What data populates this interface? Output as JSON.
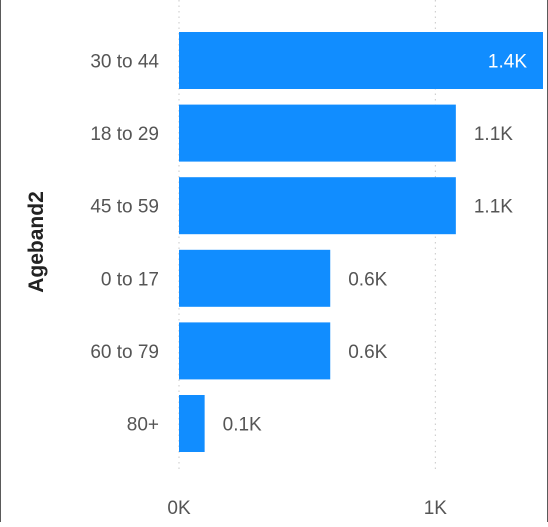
{
  "chart_data": {
    "type": "bar",
    "orientation": "horizontal",
    "title": "",
    "xlabel": "",
    "ylabel": "Ageband2",
    "categories": [
      "30 to 44",
      "18 to 29",
      "45 to 59",
      "0 to 17",
      "60 to 79",
      "80+"
    ],
    "values": [
      1420,
      1080,
      1080,
      590,
      590,
      100
    ],
    "data_labels": [
      "1.4K",
      "1.1K",
      "1.1K",
      "0.6K",
      "0.6K",
      "0.1K"
    ],
    "xlim": [
      0,
      1420
    ],
    "x_ticks": [
      0,
      1000
    ],
    "x_tick_labels": [
      "0K",
      "1K"
    ],
    "grid": true,
    "legend": "none",
    "colors": {
      "bar": "#118DFF",
      "label_inside": "#ffffff",
      "label_outside": "#555555",
      "gridline": "#c8c8c8"
    }
  }
}
